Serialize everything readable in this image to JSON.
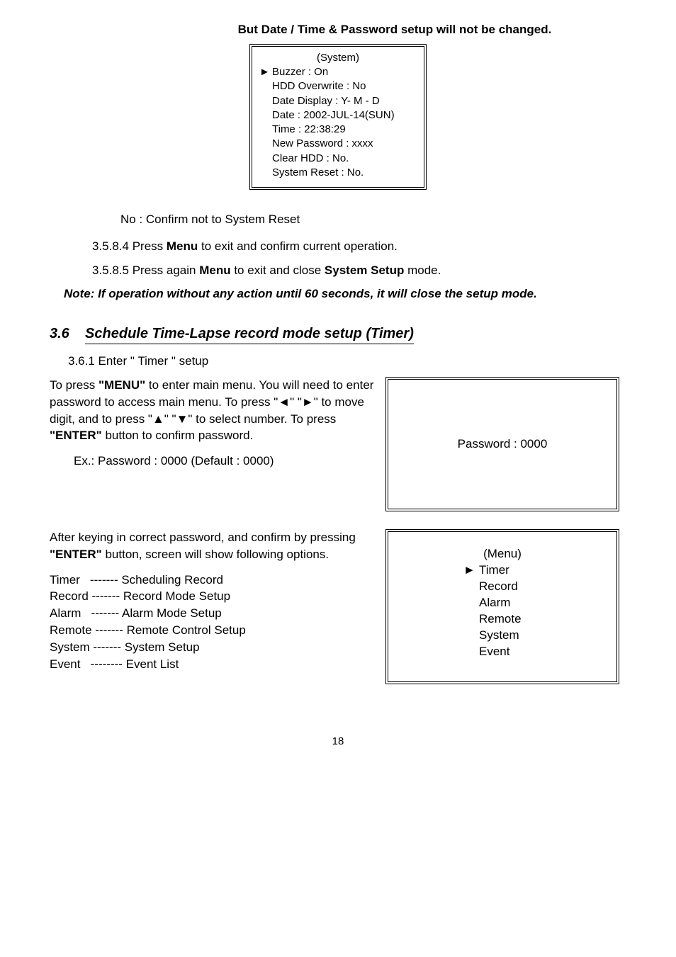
{
  "topBold": "But Date / Time & Password setup will not be changed.",
  "systemBox": {
    "title": "(System)",
    "items": [
      "Buzzer : On",
      "HDD Overwrite : No",
      "Date Display : Y- M - D",
      "Date : 2002-JUL-14(SUN)",
      "Time : 22:38:29",
      "New Password : xxxx",
      "Clear HDD : No.",
      "System Reset : No."
    ]
  },
  "noConfirm": "No : Confirm not to System Reset",
  "l3584_pre": "3.5.8.4 Press ",
  "l3584_bold": "Menu",
  "l3584_post": " to exit and confirm current operation.",
  "l3585_pre": "3.5.8.5 Press again ",
  "l3585_b1": "Menu",
  "l3585_mid": " to exit and close ",
  "l3585_b2": "System Setup",
  "l3585_post": " mode.",
  "note": "Note: If operation without any action until 60 seconds, it will close the setup mode.",
  "sec36_num": "3.6",
  "sec36_title": "Schedule Time-Lapse record mode setup (Timer)",
  "sub361": "3.6.1 Enter \" Timer \" setup",
  "para1_a": "To press ",
  "para1_b1": "\"MENU\"",
  "para1_b": " to enter main menu. You will need to enter password to access main menu. To press \"◄\" \"►\"   to move digit, and to press    \"▲\" \"▼\" to select number. To press ",
  "para1_b2": "\"ENTER\"",
  "para1_c": " button to confirm password.",
  "exLine": "Ex.: Password : 0000   (Default : 0000)",
  "passwordBox": "Password : 0000",
  "para2_a": "After keying in correct password, and confirm by pressing ",
  "para2_b1": "\"ENTER\"",
  "para2_b": " button, screen will show following options.",
  "menuDesc": "Timer   ------- Scheduling Record\nRecord ------- Record Mode Setup\nAlarm   ------- Alarm Mode Setup\nRemote ------- Remote Control Setup\nSystem ------- System Setup\nEvent   -------- Event List",
  "menuBox": {
    "title": "(Menu)",
    "items": [
      "Timer",
      "Record",
      "Alarm",
      "Remote",
      "System",
      "Event"
    ]
  },
  "pageNum": "18"
}
